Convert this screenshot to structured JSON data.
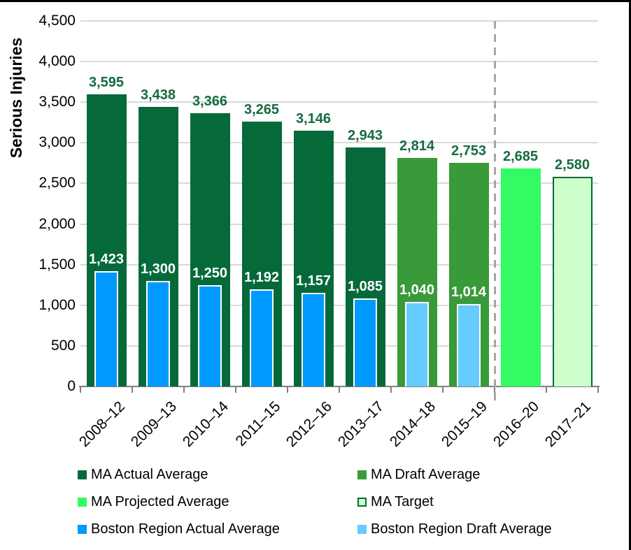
{
  "chart_data": {
    "type": "bar",
    "title": "",
    "ylabel": "Serious Injuries",
    "xlabel": "",
    "ylim": [
      0,
      4500
    ],
    "grid": true,
    "legend_position": "bottom",
    "yticks": [
      {
        "value": 4500,
        "label": "4,500"
      },
      {
        "value": 4000,
        "label": "4,000"
      },
      {
        "value": 3500,
        "label": "3,500"
      },
      {
        "value": 3000,
        "label": "3,000"
      },
      {
        "value": 2500,
        "label": "2,500"
      },
      {
        "value": 2000,
        "label": "2,000"
      },
      {
        "value": 1500,
        "label": "1,500"
      },
      {
        "value": 1000,
        "label": "1,000"
      },
      {
        "value": 500,
        "label": "500"
      },
      {
        "value": 0,
        "label": "0"
      }
    ],
    "categories": [
      "2008–12",
      "2009–13",
      "2010–14",
      "2011–15",
      "2012–16",
      "2013–17",
      "2014–18",
      "2015–19",
      "2016–20",
      "2017–21"
    ],
    "series": [
      {
        "name": "MA Actual Average",
        "key": "ma_actual",
        "values": [
          3595,
          3438,
          3366,
          3265,
          3146,
          2943,
          null,
          null,
          null,
          null
        ]
      },
      {
        "name": "MA Draft Average",
        "key": "ma_draft",
        "values": [
          null,
          null,
          null,
          null,
          null,
          null,
          2814,
          2753,
          null,
          null
        ]
      },
      {
        "name": "MA Projected Average",
        "key": "ma_projected",
        "values": [
          null,
          null,
          null,
          null,
          null,
          null,
          null,
          null,
          2685,
          null
        ]
      },
      {
        "name": "MA Target",
        "key": "ma_target",
        "values": [
          null,
          null,
          null,
          null,
          null,
          null,
          null,
          null,
          null,
          2580
        ]
      },
      {
        "name": "Boston Region Actual Average",
        "key": "boston_actual",
        "values": [
          1423,
          1300,
          1250,
          1192,
          1157,
          1085,
          null,
          null,
          null,
          null
        ]
      },
      {
        "name": "Boston Region Draft Average",
        "key": "boston_draft",
        "values": [
          null,
          null,
          null,
          null,
          null,
          null,
          1040,
          1014,
          null,
          null
        ]
      }
    ],
    "divider_after_index": 7
  },
  "legend": {
    "columns": [
      {
        "items": [
          {
            "key": "ma_actual",
            "label": "MA Actual Average"
          },
          {
            "key": "ma_projected",
            "label": "MA Projected Average"
          },
          {
            "key": "boston_actual",
            "label": "Boston Region Actual Average"
          }
        ]
      },
      {
        "items": [
          {
            "key": "ma_draft",
            "label": "MA Draft Average"
          },
          {
            "key": "ma_target",
            "label": "MA Target"
          },
          {
            "key": "boston_draft",
            "label": "Boston Region Draft Average"
          }
        ]
      }
    ]
  },
  "colors": {
    "ma_actual": "#05693A",
    "ma_draft": "#399A39",
    "ma_projected": "#33FB63",
    "ma_target_fill": "#CCFFCC",
    "ma_target_border": "#05693A",
    "boston_actual": "#0099FF",
    "boston_draft": "#66CCFF",
    "value_label_green": "#156B3F",
    "value_label_white": "#FFFFFF",
    "gridline": "#D9D9D9",
    "axis": "#808080",
    "divider": "#A6A6A6",
    "frame": "#000000"
  }
}
